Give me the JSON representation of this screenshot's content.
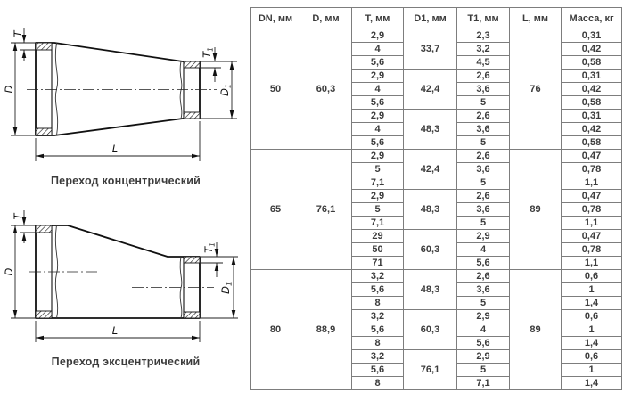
{
  "drawings": {
    "labels": {
      "t": "T",
      "t1_main": "T",
      "t1_sub": "1",
      "d": "D",
      "d1_main": "D",
      "d1_sub": "1",
      "l": "L"
    },
    "concentric_caption": "Переход концентрический",
    "eccentric_caption": "Переход эксцентрический"
  },
  "table": {
    "headers": [
      "DN, мм",
      "D, мм",
      "T, мм",
      "D1, мм",
      "T1, мм",
      "L, мм",
      "Масса, кг"
    ],
    "sections": [
      {
        "dn": "50",
        "d": "60,3",
        "l": "76",
        "groups": [
          {
            "d1": "33,7",
            "rows": [
              [
                "2,9",
                "2,3",
                "0,31"
              ],
              [
                "4",
                "3,2",
                "0,42"
              ],
              [
                "5,6",
                "4,5",
                "0,58"
              ]
            ]
          },
          {
            "d1": "42,4",
            "rows": [
              [
                "2,9",
                "2,6",
                "0,31"
              ],
              [
                "4",
                "3,6",
                "0,42"
              ],
              [
                "5,6",
                "5",
                "0,58"
              ]
            ]
          },
          {
            "d1": "48,3",
            "rows": [
              [
                "2,9",
                "2,6",
                "0,31"
              ],
              [
                "4",
                "3,6",
                "0,42"
              ],
              [
                "5,6",
                "5",
                "0,58"
              ]
            ]
          }
        ]
      },
      {
        "dn": "65",
        "d": "76,1",
        "l": "89",
        "groups": [
          {
            "d1": "42,4",
            "rows": [
              [
                "2,9",
                "2,6",
                "0,47"
              ],
              [
                "5",
                "3,6",
                "0,78"
              ],
              [
                "7,1",
                "5",
                "1,1"
              ]
            ]
          },
          {
            "d1": "48,3",
            "rows": [
              [
                "2,9",
                "2,6",
                "0,47"
              ],
              [
                "5",
                "3,6",
                "0,78"
              ],
              [
                "7,1",
                "5",
                "1,1"
              ]
            ]
          },
          {
            "d1": "60,3",
            "rows": [
              [
                "29",
                "2,9",
                "0,47"
              ],
              [
                "50",
                "4",
                "0,78"
              ],
              [
                "71",
                "5,6",
                "1,1"
              ]
            ]
          }
        ]
      },
      {
        "dn": "80",
        "d": "88,9",
        "l": "89",
        "groups": [
          {
            "d1": "48,3",
            "rows": [
              [
                "3,2",
                "2,6",
                "0,6"
              ],
              [
                "5,6",
                "3,6",
                "1"
              ],
              [
                "8",
                "5",
                "1,4"
              ]
            ]
          },
          {
            "d1": "60,3",
            "rows": [
              [
                "3,2",
                "2,9",
                "0,6"
              ],
              [
                "5,6",
                "4",
                "1"
              ],
              [
                "8",
                "5,6",
                "1,4"
              ]
            ]
          },
          {
            "d1": "76,1",
            "rows": [
              [
                "3,2",
                "2,9",
                "0,6"
              ],
              [
                "5,6",
                "5",
                "1"
              ],
              [
                "8",
                "7,1",
                "1,4"
              ]
            ]
          }
        ]
      }
    ]
  }
}
